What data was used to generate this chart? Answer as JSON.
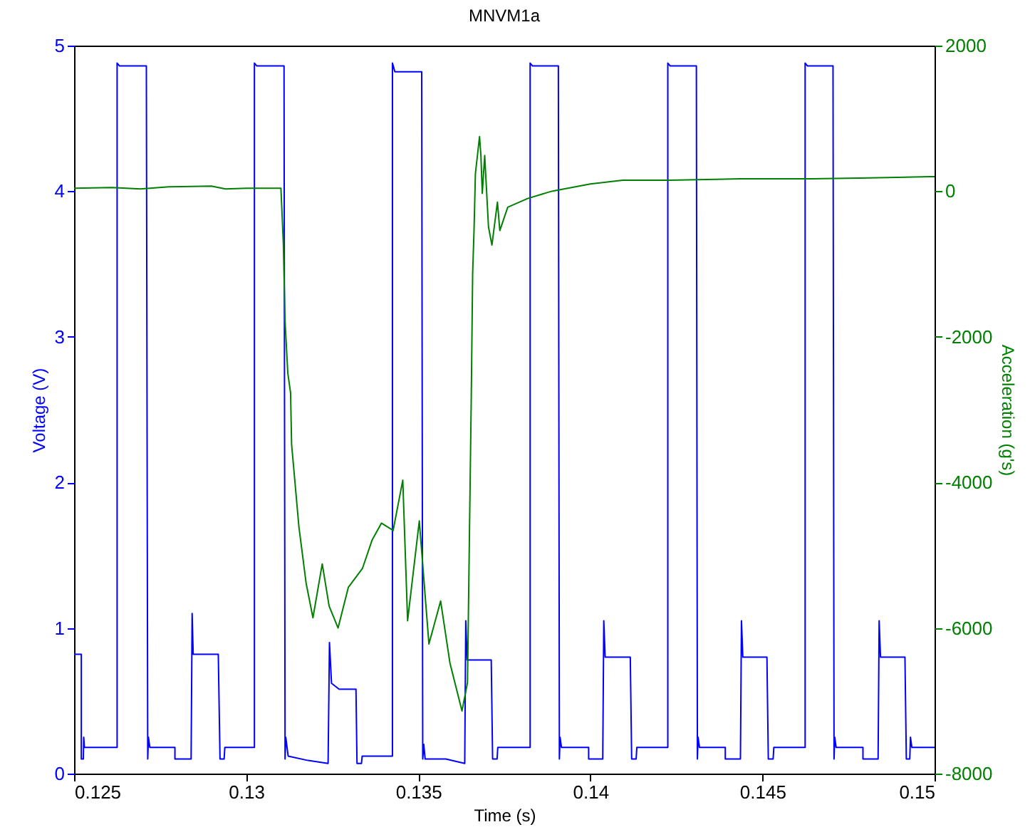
{
  "chart_data": {
    "type": "line",
    "title": "MNVM1a",
    "xlabel": "Time (s)",
    "ylabel": "Voltage (V)",
    "y2label": "Acceleration (g's)",
    "xlim": [
      0.125,
      0.15
    ],
    "xticks": [
      0.125,
      0.13,
      0.135,
      0.14,
      0.145,
      0.15
    ],
    "ylim": [
      0,
      5
    ],
    "yticks": [
      0,
      1,
      2,
      3,
      4,
      5
    ],
    "y2lim": [
      -8000,
      2000
    ],
    "y2ticks": [
      -8000,
      -6000,
      -4000,
      -2000,
      0,
      2000
    ],
    "grid": false,
    "series": [
      {
        "color": "#0000ff",
        "x": [
          0.125,
          0.12521,
          0.12521,
          0.12527,
          0.12528,
          0.1253,
          0.12625,
          0.12625,
          0.12632,
          0.1271,
          0.12714,
          0.12716,
          0.1272,
          0.12793,
          0.12793,
          0.1284,
          0.12843,
          0.12846,
          0.12919,
          0.12924,
          0.12936,
          0.12938,
          0.13024,
          0.13024,
          0.13031,
          0.1311,
          0.13113,
          0.13115,
          0.13122,
          0.1318,
          0.13238,
          0.13242,
          0.13248,
          0.1327,
          0.13319,
          0.13322,
          0.13335,
          0.13337,
          0.13425,
          0.13425,
          0.13432,
          0.1351,
          0.13513,
          0.13516,
          0.1352,
          0.1358,
          0.13635,
          0.13638,
          0.13642,
          0.13712,
          0.13716,
          0.13729,
          0.13731,
          0.13825,
          0.13825,
          0.13832,
          0.13907,
          0.1391,
          0.13912,
          0.13916,
          0.13995,
          0.13995,
          0.14036,
          0.14039,
          0.14043,
          0.14116,
          0.1412,
          0.14133,
          0.14135,
          0.14225,
          0.14225,
          0.14232,
          0.14308,
          0.14311,
          0.14313,
          0.14317,
          0.14392,
          0.14392,
          0.14436,
          0.14439,
          0.14443,
          0.14513,
          0.14517,
          0.14531,
          0.14533,
          0.14624,
          0.14624,
          0.14631,
          0.14705,
          0.14708,
          0.1471,
          0.14714,
          0.14792,
          0.14792,
          0.14836,
          0.14839,
          0.14843,
          0.14914,
          0.14918,
          0.14928,
          0.1493,
          0.14934,
          0.15
        ],
        "values": [
          0.82,
          0.82,
          0.1,
          0.1,
          0.25,
          0.18,
          0.18,
          4.88,
          4.86,
          4.86,
          0.1,
          0.25,
          0.18,
          0.18,
          0.1,
          0.1,
          1.1,
          0.82,
          0.82,
          0.1,
          0.1,
          0.18,
          0.18,
          4.88,
          4.86,
          4.86,
          0.1,
          0.25,
          0.12,
          0.09,
          0.07,
          0.9,
          0.62,
          0.58,
          0.58,
          0.07,
          0.07,
          0.12,
          0.12,
          4.88,
          4.82,
          4.82,
          0.1,
          0.2,
          0.1,
          0.1,
          0.07,
          1.05,
          0.78,
          0.78,
          0.1,
          0.1,
          0.18,
          0.18,
          4.88,
          4.86,
          4.86,
          0.1,
          0.25,
          0.18,
          0.18,
          0.1,
          0.1,
          1.05,
          0.8,
          0.8,
          0.1,
          0.1,
          0.18,
          0.18,
          4.88,
          4.86,
          4.86,
          0.1,
          0.25,
          0.18,
          0.18,
          0.1,
          0.1,
          1.05,
          0.8,
          0.8,
          0.1,
          0.1,
          0.18,
          0.18,
          4.88,
          4.86,
          4.86,
          0.1,
          0.25,
          0.18,
          0.18,
          0.1,
          0.1,
          1.05,
          0.8,
          0.8,
          0.1,
          0.1,
          0.25,
          0.18,
          0.18
        ]
      },
      {
        "color": "#008000",
        "axis": "y2",
        "x": [
          0.125,
          0.1261,
          0.12693,
          0.12775,
          0.12899,
          0.1294,
          0.13002,
          0.13101,
          0.13108,
          0.13113,
          0.13121,
          0.13129,
          0.13132,
          0.13139,
          0.13153,
          0.13174,
          0.13194,
          0.13221,
          0.13241,
          0.13267,
          0.13297,
          0.13338,
          0.13366,
          0.13393,
          0.13427,
          0.13455,
          0.13469,
          0.13503,
          0.13531,
          0.13565,
          0.13592,
          0.13627,
          0.13643,
          0.13654,
          0.13658,
          0.13662,
          0.13666,
          0.13678,
          0.13682,
          0.13686,
          0.13693,
          0.13704,
          0.13714,
          0.1373,
          0.13737,
          0.1376,
          0.13818,
          0.13888,
          0.14,
          0.14094,
          0.1423,
          0.14436,
          0.14642,
          0.14782,
          0.14988,
          0.15
        ],
        "values": [
          40,
          50,
          30,
          60,
          70,
          30,
          40,
          40,
          -720,
          -1790,
          -2500,
          -2770,
          -3480,
          -3850,
          -4600,
          -5380,
          -5860,
          -5120,
          -5700,
          -6000,
          -5440,
          -5180,
          -4790,
          -4560,
          -4660,
          -3970,
          -5900,
          -4530,
          -6220,
          -5630,
          -6480,
          -7140,
          -6750,
          -2830,
          -1130,
          -540,
          240,
          750,
          490,
          -30,
          490,
          -490,
          -740,
          -150,
          -540,
          -220,
          -100,
          0,
          100,
          150,
          150,
          170,
          170,
          180,
          200,
          200
        ]
      }
    ]
  }
}
